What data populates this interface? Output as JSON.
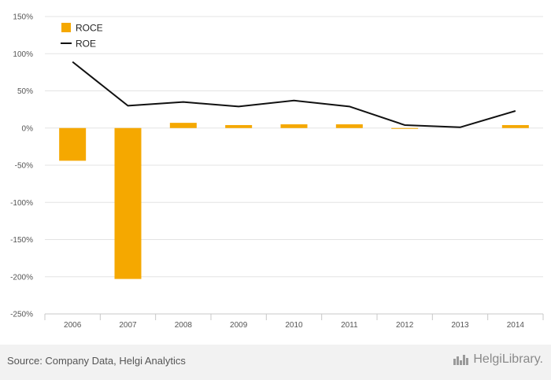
{
  "chart_data": {
    "type": "bar",
    "categories": [
      "2006",
      "2007",
      "2008",
      "2009",
      "2010",
      "2011",
      "2012",
      "2013",
      "2014"
    ],
    "series": [
      {
        "name": "ROCE",
        "kind": "bar",
        "color": "#f5a800",
        "values": [
          -44,
          -203,
          7,
          4,
          5,
          5,
          -1,
          0,
          4
        ]
      },
      {
        "name": "ROE",
        "kind": "line",
        "color": "#111111",
        "values": [
          89,
          30,
          35,
          29,
          37,
          29,
          4,
          1,
          23
        ]
      }
    ],
    "ylim": [
      -250,
      150
    ],
    "yticks": [
      -250,
      -200,
      -150,
      -100,
      -50,
      0,
      50,
      100,
      150
    ],
    "ytick_labels": [
      "-250%",
      "-200%",
      "-150%",
      "-100%",
      "-50%",
      "0%",
      "50%",
      "100%",
      "150%"
    ],
    "grid": true,
    "legend_position": "top-left",
    "title": "",
    "xlabel": "",
    "ylabel": ""
  },
  "footer": {
    "source": "Source: Company Data, Helgi Analytics",
    "brand": "HelgiLibrary."
  }
}
